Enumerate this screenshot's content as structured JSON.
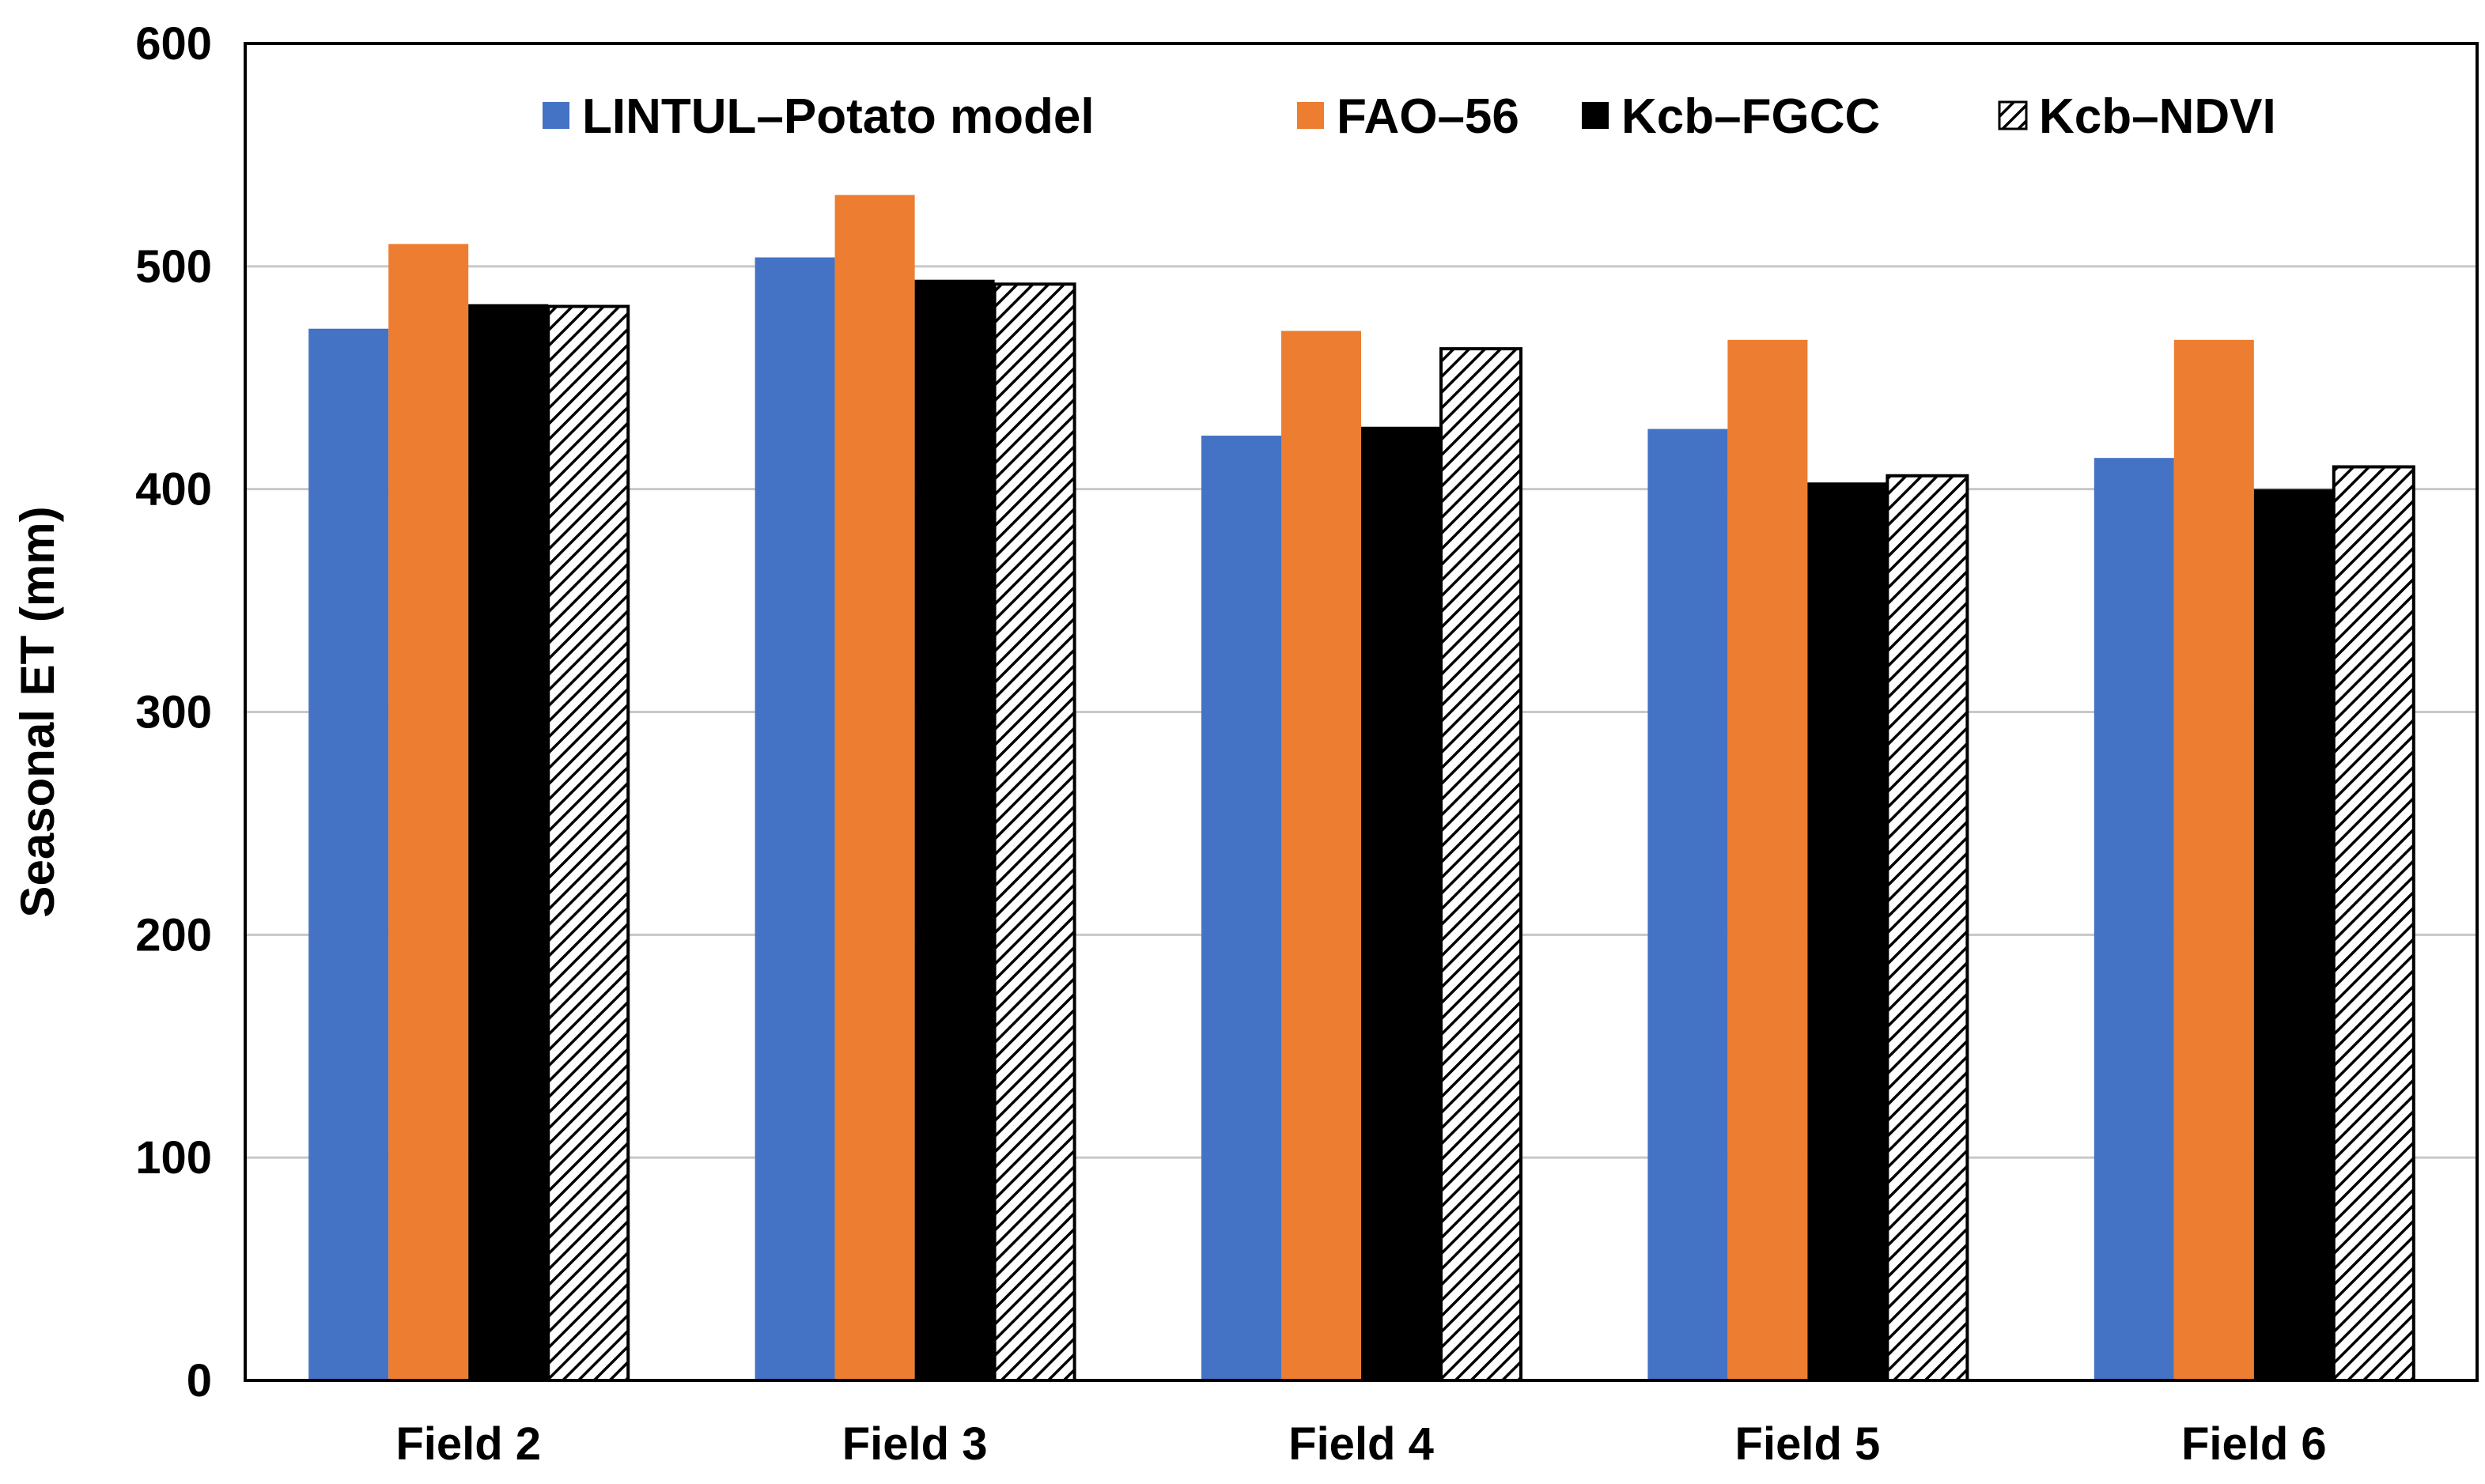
{
  "chart_data": {
    "type": "bar",
    "title": "",
    "xlabel": "",
    "ylabel": "Seasonal ET (mm)",
    "ylim": [
      0,
      600
    ],
    "yticks": [
      0,
      100,
      200,
      300,
      400,
      500,
      600
    ],
    "grid": true,
    "legend_position": "top-right",
    "categories": [
      "Field 2",
      "Field 3",
      "Field 4",
      "Field 5",
      "Field 6"
    ],
    "series": [
      {
        "name": "LINTUL–Potato model",
        "color": "#4472C4",
        "pattern": "solid",
        "values": [
          472,
          504,
          424,
          427,
          414
        ]
      },
      {
        "name": "FAO–56",
        "color": "#ED7D31",
        "pattern": "solid",
        "values": [
          510,
          532,
          471,
          467,
          467
        ]
      },
      {
        "name": "Kcb–FGCC",
        "color": "#000000",
        "pattern": "solid",
        "values": [
          483,
          494,
          428,
          403,
          400
        ]
      },
      {
        "name": "Kcb–NDVI",
        "color": "#000000",
        "pattern": "diagonal-hatch",
        "values": [
          482,
          492,
          463,
          406,
          410
        ]
      }
    ]
  }
}
